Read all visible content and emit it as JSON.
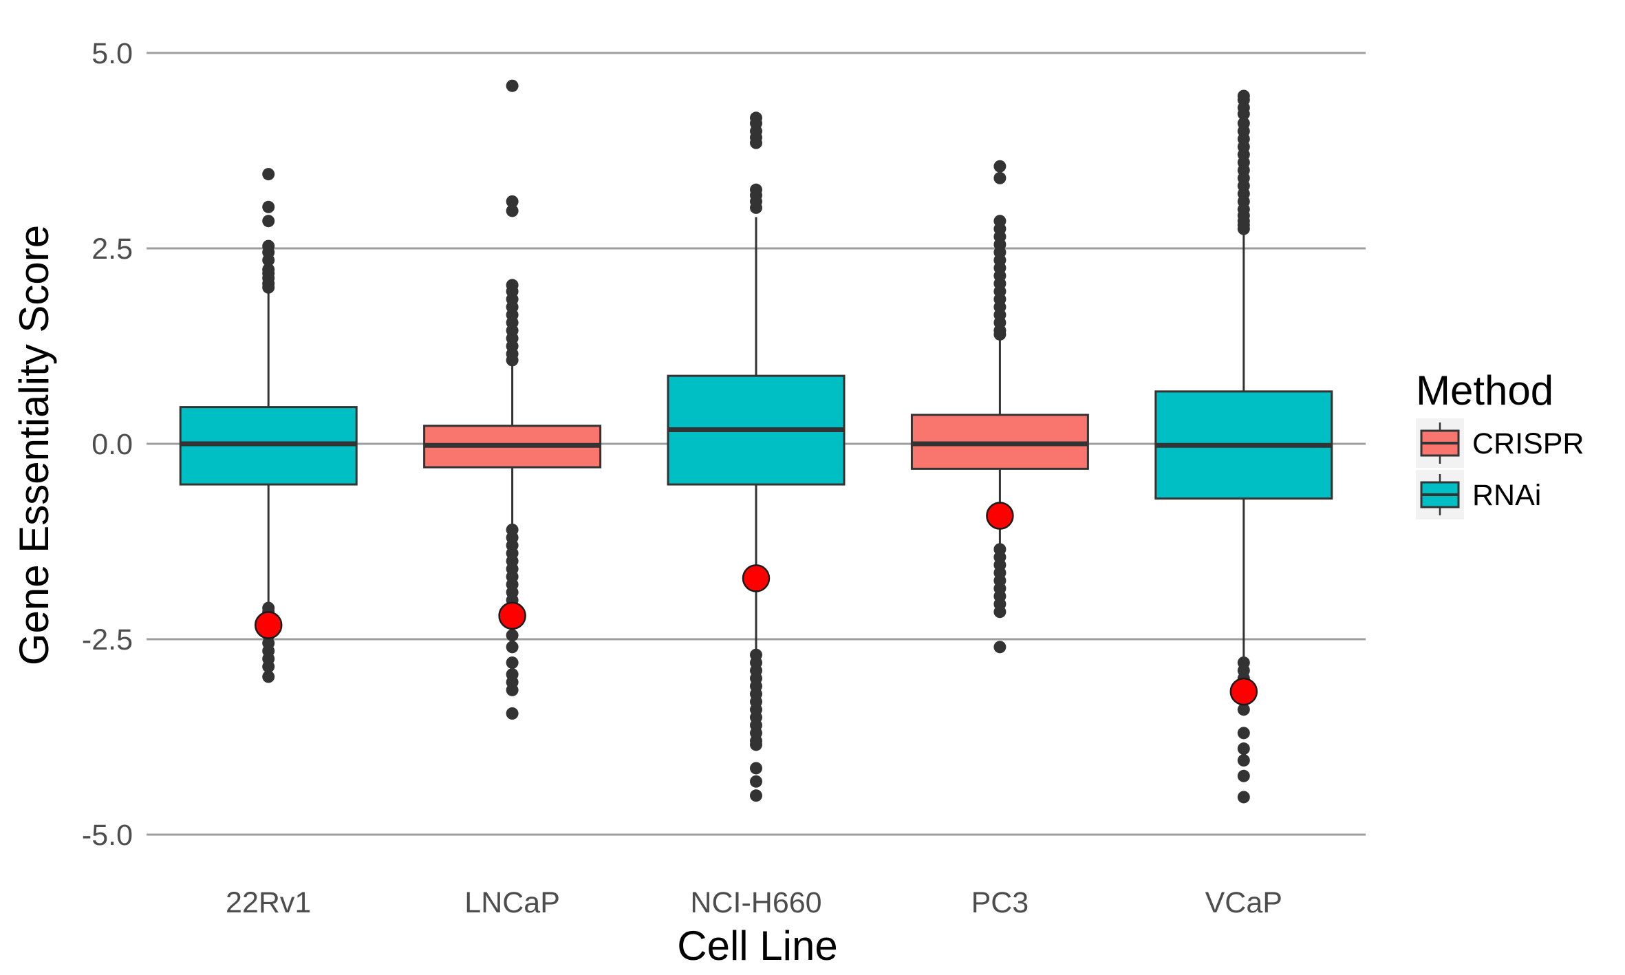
{
  "chart_data": {
    "type": "boxplot",
    "xlabel": "Cell Line",
    "ylabel": "Gene Essentiality Score",
    "ylim": [
      -5.3,
      5.3
    ],
    "yticks": [
      5.0,
      2.5,
      0.0,
      -2.5,
      -5.0
    ],
    "ytick_labels": [
      "5.0",
      "2.5",
      "0.0",
      "-2.5",
      "-5.0"
    ],
    "grid": "horizontal major gridlines",
    "legend": {
      "title": "Method",
      "position": "right",
      "entries": [
        {
          "label": "CRISPR",
          "color": "#F8766D"
        },
        {
          "label": "RNAi",
          "color": "#00BFC4"
        }
      ]
    },
    "categories": [
      "22Rv1",
      "LNCaP",
      "NCI-H660",
      "PC3",
      "VCaP"
    ],
    "boxes": [
      {
        "category": "22Rv1",
        "method": "RNAi",
        "q1": -0.52,
        "median": 0.0,
        "q3": 0.47,
        "whisker_low": -2.05,
        "whisker_high": 1.95,
        "outliers": [
          3.45,
          3.03,
          2.85,
          2.53,
          2.45,
          2.35,
          2.23,
          2.18,
          2.12,
          2.05,
          2.0,
          -2.1,
          -2.15,
          -2.2,
          -2.25,
          -2.45,
          -2.55,
          -2.65,
          -2.75,
          -2.85,
          -2.98
        ],
        "highlight": -2.32
      },
      {
        "category": "LNCaP",
        "method": "CRISPR",
        "q1": -0.3,
        "median": -0.02,
        "q3": 0.23,
        "whisker_low": -1.05,
        "whisker_high": 1.0,
        "outliers": [
          4.58,
          3.1,
          2.98,
          2.03,
          1.95,
          1.85,
          1.75,
          1.65,
          1.55,
          1.45,
          1.35,
          1.25,
          1.15,
          1.07,
          -1.1,
          -1.2,
          -1.3,
          -1.4,
          -1.5,
          -1.6,
          -1.7,
          -1.8,
          -1.9,
          -2.0,
          -2.1,
          -2.3,
          -2.45,
          -2.6,
          -2.8,
          -2.95,
          -3.05,
          -3.15,
          -3.45
        ],
        "highlight": -2.2
      },
      {
        "category": "NCI-H660",
        "method": "RNAi",
        "q1": -0.52,
        "median": 0.18,
        "q3": 0.87,
        "whisker_low": -2.65,
        "whisker_high": 2.9,
        "outliers": [
          4.17,
          4.1,
          4.0,
          3.92,
          3.85,
          3.25,
          3.18,
          3.1,
          3.02,
          -2.7,
          -2.8,
          -2.9,
          -3.0,
          -3.1,
          -3.2,
          -3.3,
          -3.4,
          -3.5,
          -3.6,
          -3.7,
          -3.8,
          -3.85,
          -4.15,
          -4.32,
          -4.5
        ],
        "highlight": -1.72
      },
      {
        "category": "PC3",
        "method": "CRISPR",
        "q1": -0.32,
        "median": 0.0,
        "q3": 0.37,
        "whisker_low": -1.3,
        "whisker_high": 1.35,
        "outliers": [
          3.55,
          3.4,
          2.85,
          2.75,
          2.65,
          2.55,
          2.45,
          2.35,
          2.25,
          2.15,
          2.05,
          1.95,
          1.85,
          1.75,
          1.65,
          1.55,
          1.45,
          1.4,
          -1.35,
          -1.45,
          -1.55,
          -1.65,
          -1.75,
          -1.85,
          -1.95,
          -2.05,
          -2.15,
          -2.6
        ],
        "highlight": -0.92
      },
      {
        "category": "VCaP",
        "method": "RNAi",
        "q1": -0.7,
        "median": -0.02,
        "q3": 0.67,
        "whisker_low": -2.75,
        "whisker_high": 2.7,
        "outliers": [
          4.45,
          4.4,
          4.3,
          4.22,
          4.1,
          4.0,
          3.9,
          3.8,
          3.7,
          3.6,
          3.5,
          3.4,
          3.3,
          3.2,
          3.1,
          3.0,
          2.92,
          2.85,
          2.8,
          2.75,
          -2.8,
          -2.9,
          -3.0,
          -3.1,
          -3.25,
          -3.4,
          -3.7,
          -3.9,
          -4.05,
          -4.25,
          -4.52
        ],
        "highlight": -3.17
      }
    ]
  }
}
